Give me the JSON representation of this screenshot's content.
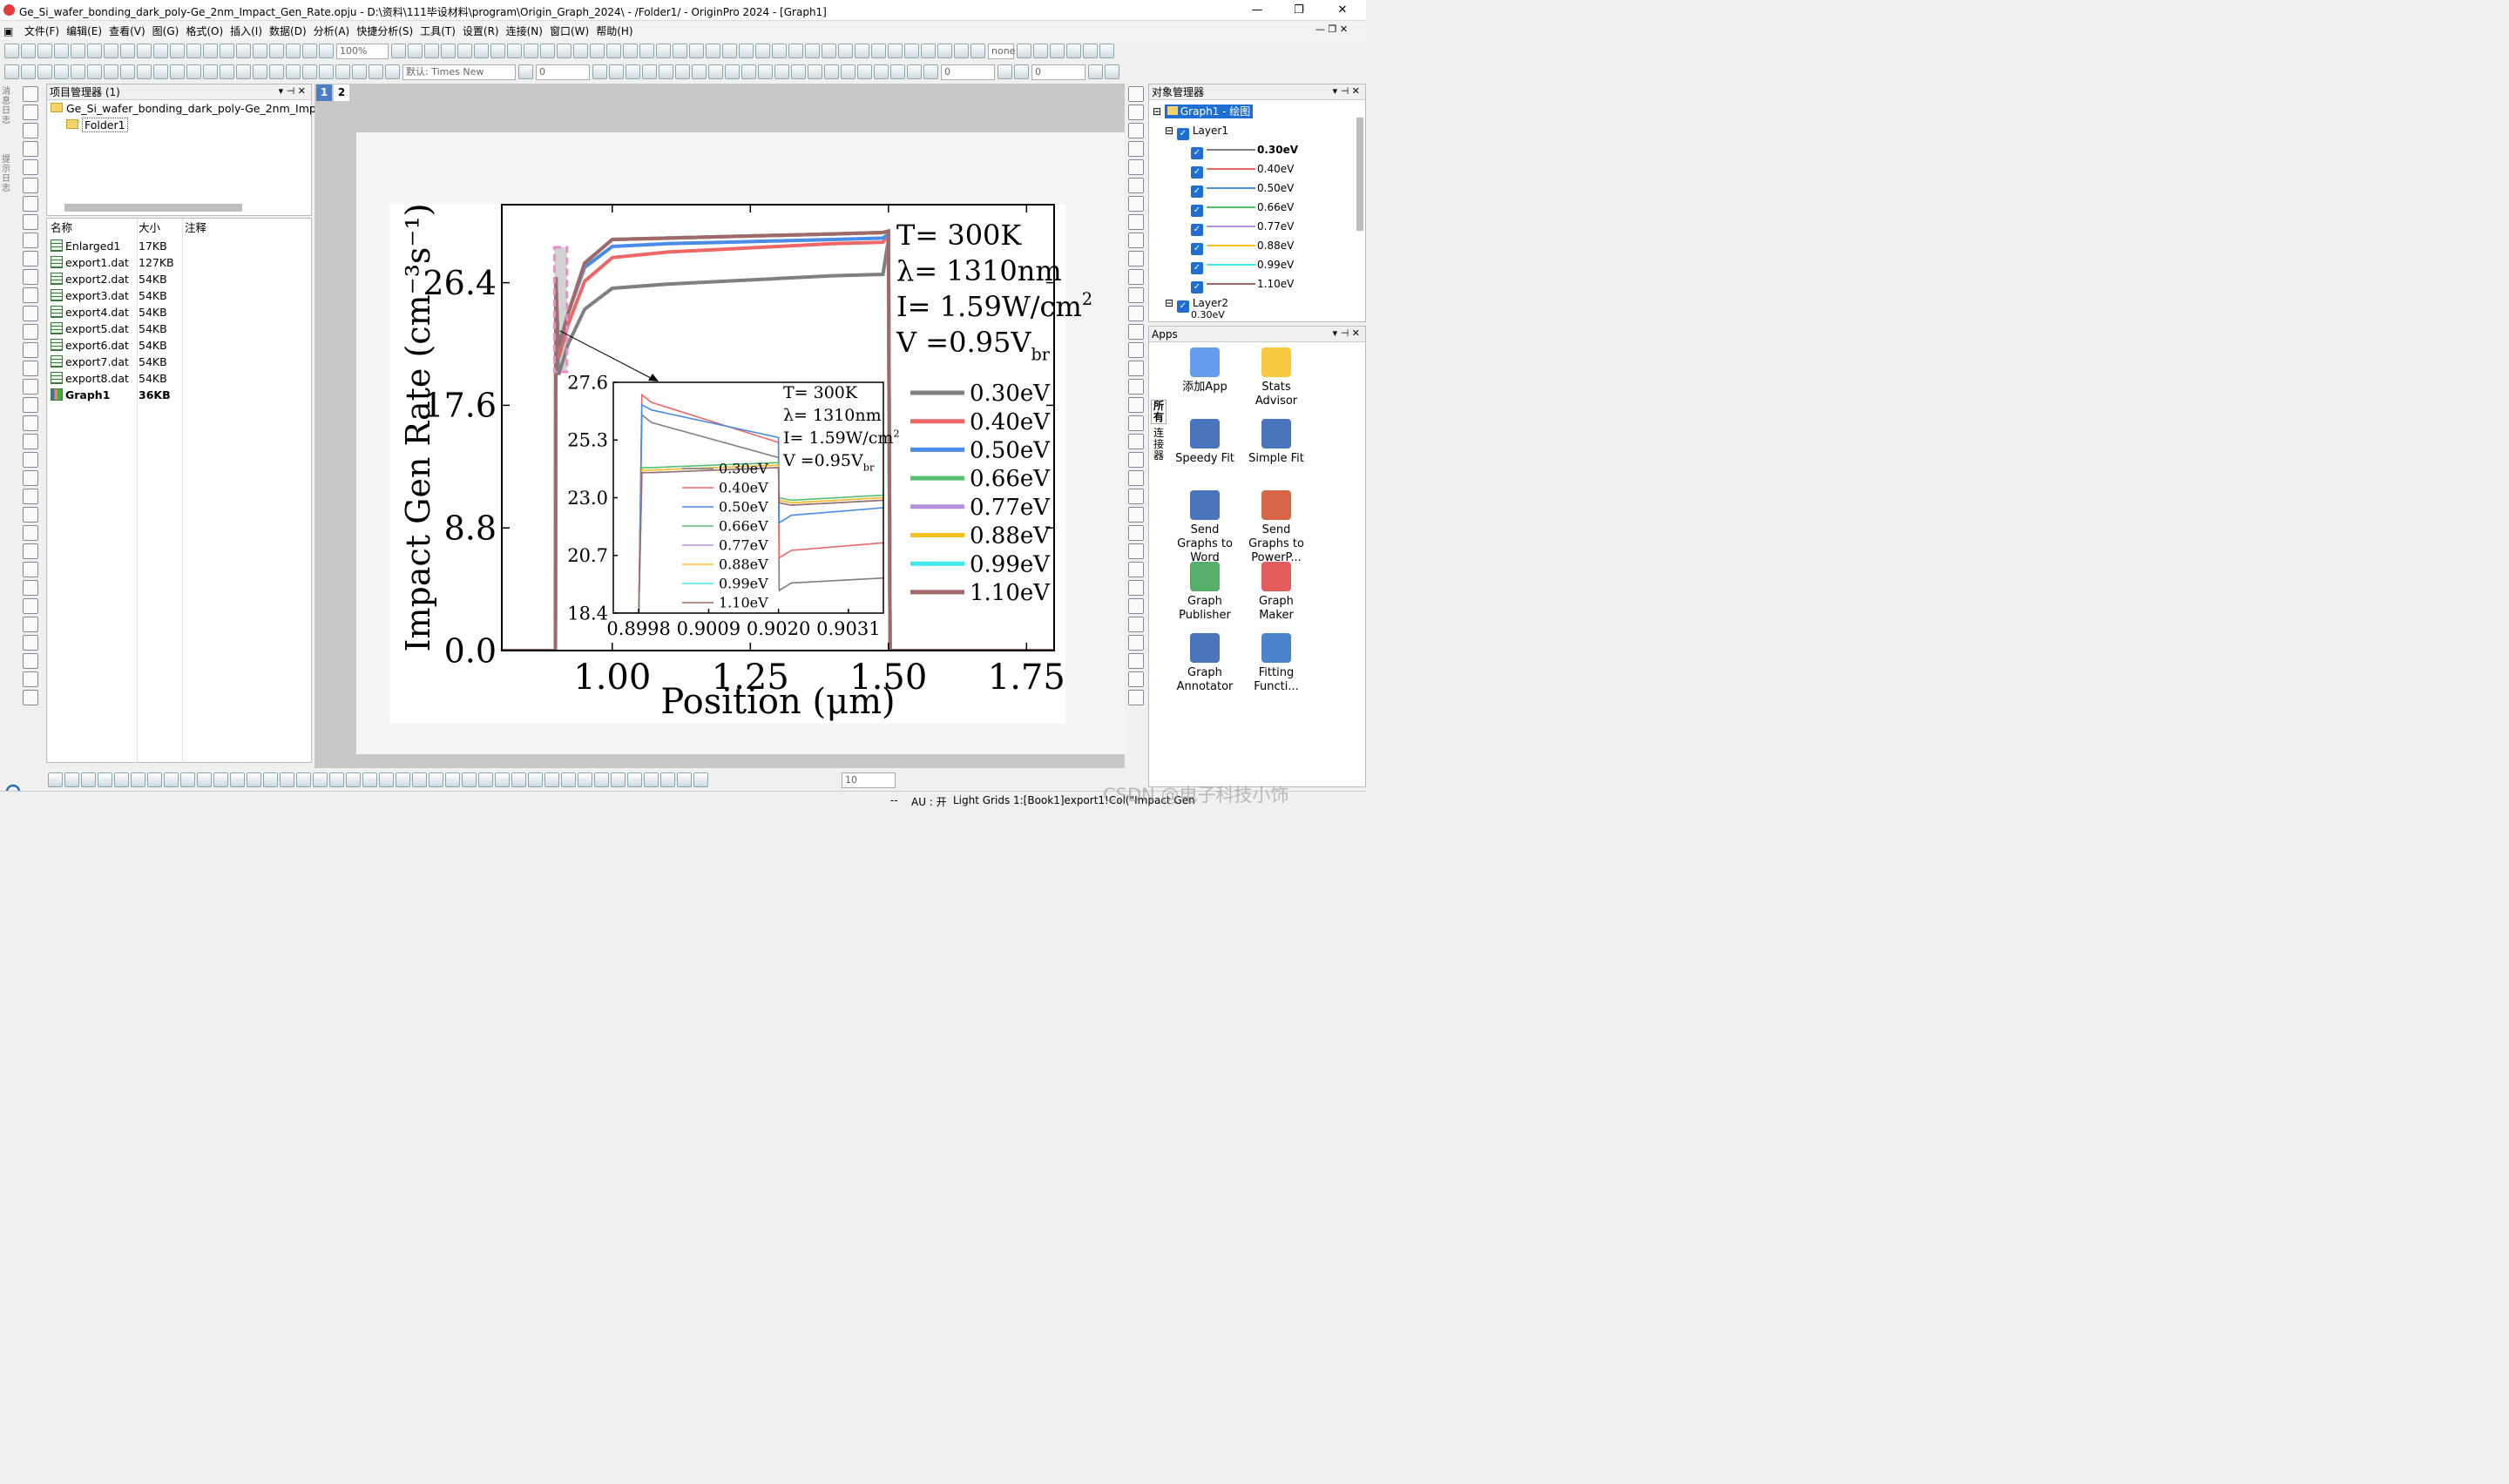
{
  "window": {
    "title": "Ge_Si_wafer_bonding_dark_poly-Ge_2nm_Impact_Gen_Rate.opju - D:\\资料\\111毕设材料\\program\\Origin_Graph_2024\\ - /Folder1/ - OriginPro 2024 - [Graph1]",
    "minimize": "—",
    "restore": "❐",
    "close": "✕"
  },
  "menu": [
    "文件(F)",
    "编辑(E)",
    "查看(V)",
    "图(G)",
    "格式(O)",
    "插入(I)",
    "数据(D)",
    "分析(A)",
    "快捷分析(S)",
    "工具(T)",
    "设置(R)",
    "连接(N)",
    "窗口(W)",
    "帮助(H)"
  ],
  "toolbar": {
    "zoom": "100%",
    "font": "默认: Times New",
    "font_size": "0",
    "size2": "0",
    "line_size": "0",
    "bottom_size": "10",
    "none_label": "none"
  },
  "project": {
    "title": "项目管理器 (1)",
    "root": "Ge_Si_wafer_bonding_dark_poly-Ge_2nm_Imp",
    "folder": "Folder1",
    "cols": {
      "name": "名称",
      "size": "大小",
      "note": "注释"
    },
    "files": [
      {
        "name": "Enlarged1",
        "size": "17KB"
      },
      {
        "name": "export1.dat",
        "size": "127KB"
      },
      {
        "name": "export2.dat",
        "size": "54KB"
      },
      {
        "name": "export3.dat",
        "size": "54KB"
      },
      {
        "name": "export4.dat",
        "size": "54KB"
      },
      {
        "name": "export5.dat",
        "size": "54KB"
      },
      {
        "name": "export6.dat",
        "size": "54KB"
      },
      {
        "name": "export7.dat",
        "size": "54KB"
      },
      {
        "name": "export8.dat",
        "size": "54KB"
      },
      {
        "name": "Graph1",
        "size": "36KB"
      }
    ]
  },
  "side_tabs": {
    "msg": "消息日志",
    "hint": "提示日志"
  },
  "layer_tabs": [
    "1",
    "2"
  ],
  "objects": {
    "title": "对象管理器",
    "graph": "Graph1 - 绘图",
    "layer1": "Layer1",
    "layer2": "Layer2",
    "layer2_first": "0.30eV",
    "items": [
      {
        "label": "0.30eV",
        "color": "#7f7f7f"
      },
      {
        "label": "0.40eV",
        "color": "#ee6666"
      },
      {
        "label": "0.50eV",
        "color": "#4a8be8"
      },
      {
        "label": "0.66eV",
        "color": "#55c070"
      },
      {
        "label": "0.77eV",
        "color": "#b58ee0"
      },
      {
        "label": "0.88eV",
        "color": "#f5c020"
      },
      {
        "label": "0.99eV",
        "color": "#40e8f0"
      },
      {
        "label": "1.10eV",
        "color": "#a06868"
      }
    ]
  },
  "apps": {
    "title": "Apps",
    "tabs": {
      "all": "所有",
      "conn": "连接器"
    },
    "items": [
      {
        "label": "添加App",
        "icon": "add-app-icon"
      },
      {
        "label": "Stats Advisor",
        "icon": "stats-advisor-icon"
      },
      {
        "label": "Speedy Fit",
        "icon": "speedy-fit-icon"
      },
      {
        "label": "Simple Fit",
        "icon": "simple-fit-icon"
      },
      {
        "label": "Send Graphs to Word",
        "icon": "word-icon"
      },
      {
        "label": "Send Graphs to PowerP...",
        "icon": "powerpoint-icon"
      },
      {
        "label": "Graph Publisher",
        "icon": "graph-publisher-icon"
      },
      {
        "label": "Graph Maker",
        "icon": "graph-maker-icon"
      },
      {
        "label": "Graph Annotator",
        "icon": "graph-annotator-icon"
      },
      {
        "label": "Fitting Functi...",
        "icon": "fitting-function-icon"
      }
    ]
  },
  "status": {
    "au": "AU : 开",
    "grids": "Light Grids",
    "ref": "1:[Book1]export1!Col(\"Impact Gen",
    "dash": "--",
    "watermark": "CSDN @电子科技小饰"
  },
  "chart_data": [
    {
      "type": "line",
      "xlabel": "Position (μm)",
      "ylabel": "Impact Gen Rate (cm⁻³s⁻¹)",
      "xticks": [
        "1.00",
        "1.25",
        "1.50",
        "1.75"
      ],
      "yticks": [
        "0.0",
        "8.8",
        "17.6",
        "26.4"
      ],
      "xlim": [
        0.8,
        1.8
      ],
      "ylim": [
        0,
        32
      ],
      "annotation": [
        "T= 300K",
        "λ= 1310nm",
        "I= 1.59W/cm²",
        "V =0.95Vbr"
      ],
      "legend": "right",
      "x": [
        0.8,
        0.895,
        0.897,
        0.898,
        0.899,
        0.9,
        0.902,
        0.903,
        0.92,
        0.95,
        1.0,
        1.1,
        1.2,
        1.3,
        1.4,
        1.49,
        1.5,
        1.503,
        1.505,
        1.8
      ],
      "series": [
        {
          "name": "0.30eV",
          "color": "#7f7f7f",
          "values": [
            0,
            0,
            0,
            26.8,
            24.5,
            23.4,
            20.0,
            19.8,
            22.0,
            24.5,
            26.0,
            26.3,
            26.5,
            26.7,
            26.9,
            27.0,
            29.5,
            0,
            0,
            0
          ]
        },
        {
          "name": "0.40eV",
          "color": "#ee6666",
          "values": [
            0,
            0,
            0,
            26.8,
            24.8,
            23.8,
            21.2,
            21.0,
            23.4,
            26.5,
            28.2,
            28.6,
            28.8,
            29.0,
            29.2,
            29.3,
            29.8,
            0,
            0,
            0
          ]
        },
        {
          "name": "0.50eV",
          "color": "#4a8be8",
          "values": [
            0,
            0,
            0,
            26.8,
            25.0,
            24.0,
            22.0,
            21.8,
            24.2,
            27.5,
            29.0,
            29.2,
            29.3,
            29.4,
            29.5,
            29.6,
            29.9,
            0,
            0,
            0
          ]
        },
        {
          "name": "0.66eV",
          "color": "#55c070",
          "values": [
            0,
            0,
            0,
            26.8,
            25.0,
            24.0,
            22.0,
            21.8,
            24.2,
            27.8,
            29.5,
            29.6,
            29.7,
            29.8,
            29.9,
            30.0,
            30.1,
            0,
            0,
            0
          ]
        },
        {
          "name": "0.77eV",
          "color": "#b58ee0",
          "values": [
            0,
            0,
            0,
            26.8,
            25.0,
            24.0,
            22.0,
            21.8,
            24.2,
            27.8,
            29.5,
            29.6,
            29.7,
            29.8,
            29.9,
            30.0,
            30.1,
            0,
            0,
            0
          ]
        },
        {
          "name": "0.88eV",
          "color": "#f5c020",
          "values": [
            0,
            0,
            0,
            26.8,
            25.0,
            24.0,
            22.0,
            21.8,
            24.2,
            27.8,
            29.5,
            29.6,
            29.7,
            29.8,
            29.9,
            30.0,
            30.1,
            0,
            0,
            0
          ]
        },
        {
          "name": "0.99eV",
          "color": "#40e8f0",
          "values": [
            0,
            0,
            0,
            26.8,
            25.0,
            24.0,
            22.0,
            21.8,
            24.2,
            27.8,
            29.5,
            29.6,
            29.7,
            29.8,
            29.9,
            30.0,
            30.1,
            0,
            0,
            0
          ]
        },
        {
          "name": "1.10eV",
          "color": "#a06868",
          "values": [
            0,
            0,
            0,
            26.8,
            25.0,
            24.0,
            22.0,
            21.8,
            24.2,
            27.8,
            29.5,
            29.6,
            29.7,
            29.8,
            29.9,
            30.0,
            30.1,
            0,
            0,
            0
          ]
        }
      ]
    },
    {
      "type": "line",
      "xticks": [
        "0.8998",
        "0.9009",
        "0.9020",
        "0.9031"
      ],
      "yticks": [
        "18.4",
        "20.7",
        "23.0",
        "25.3",
        "27.6"
      ],
      "xlim": [
        0.8994,
        0.90365
      ],
      "ylim": [
        18.4,
        27.6
      ],
      "annotation": [
        "T= 300K",
        "λ= 1310nm",
        "I= 1.59W/cm²",
        "V =0.95Vbr"
      ],
      "legend": "bottom-left",
      "x": [
        0.8994,
        0.8998,
        0.89985,
        0.9,
        0.902,
        0.90201,
        0.9022,
        0.90365
      ],
      "series": [
        {
          "name": "0.30eV",
          "color": "#7f7f7f",
          "values": [
            18.4,
            18.4,
            26.3,
            26.0,
            24.6,
            19.3,
            19.6,
            19.8
          ]
        },
        {
          "name": "0.40eV",
          "color": "#ee6666",
          "values": [
            18.4,
            18.4,
            27.1,
            26.8,
            25.2,
            20.6,
            20.9,
            21.2
          ]
        },
        {
          "name": "0.50eV",
          "color": "#4a8be8",
          "values": [
            18.4,
            18.4,
            26.7,
            26.5,
            25.4,
            22.0,
            22.3,
            22.6
          ]
        },
        {
          "name": "0.66eV",
          "color": "#55c070",
          "values": [
            18.4,
            18.4,
            24.2,
            24.2,
            24.4,
            23.0,
            22.9,
            23.1
          ]
        },
        {
          "name": "0.77eV",
          "color": "#b58ee0",
          "values": [
            18.4,
            18.4,
            24.1,
            24.1,
            24.3,
            22.9,
            22.8,
            23.0
          ]
        },
        {
          "name": "0.88eV",
          "color": "#f5c020",
          "values": [
            18.4,
            18.4,
            24.1,
            24.1,
            24.3,
            22.9,
            22.8,
            23.0
          ]
        },
        {
          "name": "0.99eV",
          "color": "#40e8f0",
          "values": [
            18.4,
            18.4,
            24.0,
            24.0,
            24.2,
            22.8,
            22.7,
            22.9
          ]
        },
        {
          "name": "1.10eV",
          "color": "#a06868",
          "values": [
            18.4,
            18.4,
            24.0,
            24.0,
            24.2,
            22.8,
            22.7,
            22.9
          ]
        }
      ]
    }
  ]
}
